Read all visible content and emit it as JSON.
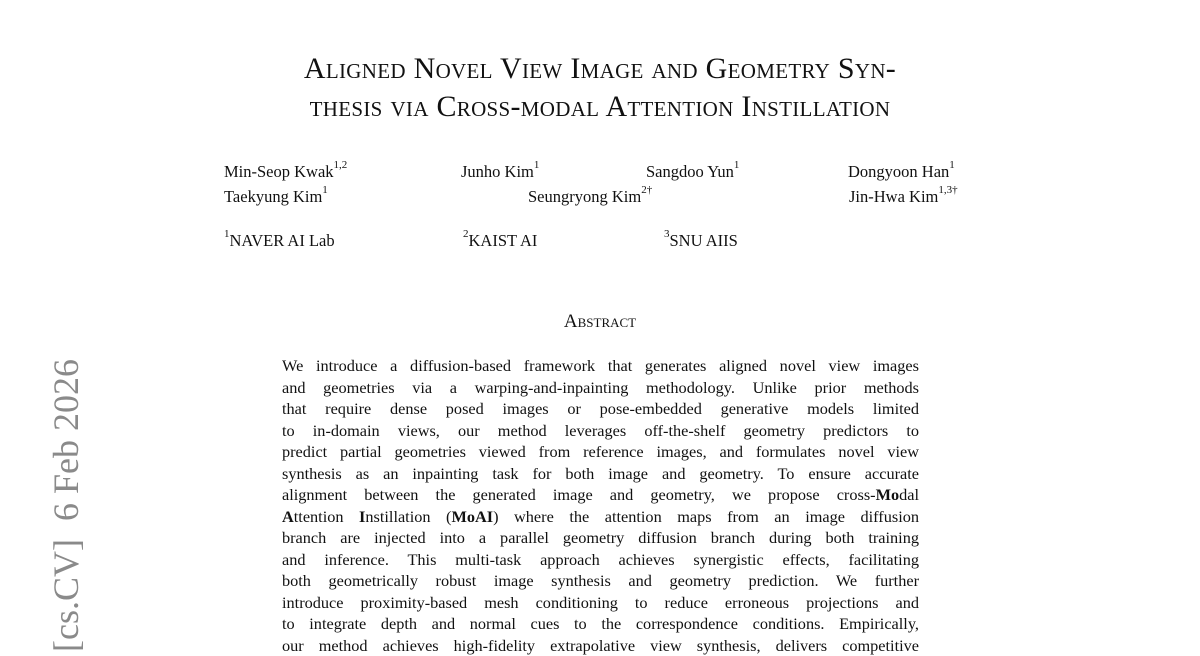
{
  "arxiv_stamp": "[cs.CV]  6 Feb 2026",
  "title": [
    "Aligned Novel View Image and Geometry Syn-",
    "thesis via Cross-modal Attention Instillation"
  ],
  "authors": [
    {
      "name": "Min-Seop Kwak",
      "aff": "1,2"
    },
    {
      "name": "Junho Kim",
      "aff": "1"
    },
    {
      "name": "Sangdoo Yun",
      "aff": "1"
    },
    {
      "name": "Dongyoon Han",
      "aff": "1"
    },
    {
      "name": "Taekyung Kim",
      "aff": "1"
    },
    {
      "name": "Seungryong Kim",
      "aff": "2†"
    },
    {
      "name": "Jin-Hwa Kim",
      "aff": "1,3†"
    }
  ],
  "affiliations": [
    {
      "num": "1",
      "name": "NAVER AI Lab"
    },
    {
      "num": "2",
      "name": "KAIST AI"
    },
    {
      "num": "3",
      "name": "SNU AIIS"
    }
  ],
  "abstract_heading": "Abstract",
  "abstract_lines": [
    "We introduce a diffusion-based framework that generates aligned novel view images",
    "and geometries via a warping-and-inpainting methodology. Unlike prior methods",
    "that require dense posed images or pose-embedded generative models limited",
    "to in-domain views, our method leverages off-the-shelf geometry predictors to",
    "predict partial geometries viewed from reference images, and formulates novel view",
    "synthesis as an inpainting task for both image and geometry. To ensure accurate",
    "alignment between the generated image and geometry, we propose cross-",
    "Mo",
    "dal",
    "A",
    "ttention ",
    "I",
    "nstillation (",
    "MoAI",
    ") where the attention maps from an image diffusion",
    "branch are injected into a parallel geometry diffusion branch during both training",
    "and inference. This multi-task approach achieves synergistic effects, facilitating",
    "both geometrically robust image synthesis and geometry prediction. We further",
    "introduce proximity-based mesh conditioning to reduce erroneous projections and",
    "to integrate depth and normal cues to the correspondence conditions. Empirically,",
    "our method achieves high-fidelity extrapolative view synthesis, delivers competitive"
  ]
}
